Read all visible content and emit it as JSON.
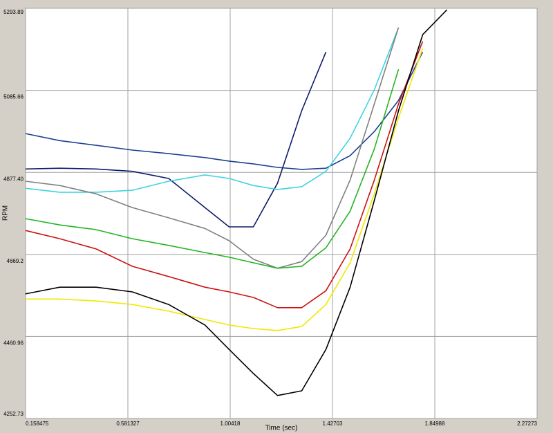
{
  "chart_data": {
    "type": "line",
    "x_label": "Time (sec)",
    "y_label": "RPM",
    "x": [
      0.158,
      0.3,
      0.45,
      0.6,
      0.75,
      0.9,
      1.0,
      1.1,
      1.2,
      1.3,
      1.4,
      1.5,
      1.6,
      1.7,
      1.8,
      1.9
    ],
    "xlim": [
      0.158475,
      2.27273
    ],
    "xticks": [
      0.158475,
      0.581327,
      1.00418,
      1.42703,
      1.84988,
      2.27273
    ],
    "ylim": [
      4252.73,
      5293.89
    ],
    "yticks": [
      4252.73,
      4460.96,
      4669.2,
      {
        "value": 4877.4,
        "label": "4877.40"
      },
      5085.66,
      5293.89
    ],
    "grid": true,
    "series": [
      {
        "color": "#1c3f94",
        "values": [
          4976,
          4958,
          4946,
          4934,
          4925,
          4915,
          4906,
          4899,
          4890,
          4885,
          4888,
          4920,
          4981,
          5060,
          5183,
          null
        ]
      },
      {
        "color": "#0d1a6b",
        "values": [
          4886,
          4888,
          4886,
          4880,
          4862,
          4788,
          4739,
          4739,
          4850,
          5034,
          5183,
          null,
          null,
          null,
          null,
          null
        ]
      },
      {
        "color": "#3fd3e0",
        "values": [
          4837,
          4827,
          4827,
          4832,
          4855,
          4871,
          4862,
          4844,
          4834,
          4841,
          4880,
          4964,
          5087,
          5245,
          null,
          null
        ]
      },
      {
        "color": "#808080",
        "values": [
          4855,
          4844,
          4823,
          4788,
          4762,
          4735,
          4704,
          4657,
          4634,
          4651,
          4718,
          4858,
          5051,
          5245,
          null,
          null
        ]
      },
      {
        "color": "#22b422",
        "values": [
          4760,
          4744,
          4732,
          4709,
          4692,
          4674,
          4662,
          4648,
          4634,
          4639,
          4686,
          4779,
          4937,
          5139,
          null,
          null
        ]
      },
      {
        "color": "#cc1111",
        "values": [
          4730,
          4709,
          4683,
          4639,
          4613,
          4586,
          4574,
          4560,
          4534,
          4534,
          4577,
          4683,
          4858,
          5051,
          5210,
          null
        ]
      },
      {
        "color": "#f0e800",
        "values": [
          4556,
          4556,
          4551,
          4542,
          4525,
          4504,
          4490,
          4481,
          4476,
          4486,
          4542,
          4648,
          4823,
          5016,
          5192,
          null
        ]
      },
      {
        "color": "#000000",
        "values": [
          4569,
          4586,
          4586,
          4574,
          4542,
          4490,
          4428,
          4367,
          4311,
          4323,
          4428,
          4586,
          4806,
          5034,
          5227,
          5290
        ]
      }
    ]
  }
}
